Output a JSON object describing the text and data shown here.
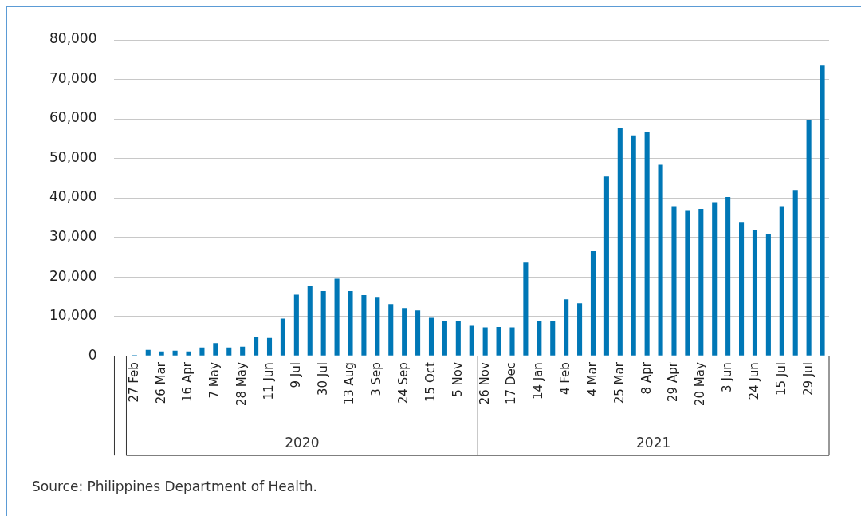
{
  "chart_data": {
    "type": "bar",
    "categories": [
      null,
      "27 Feb",
      null,
      "26 Mar",
      null,
      "16 Apr",
      null,
      "7 May",
      null,
      "28 May",
      null,
      "11 Jun",
      null,
      "9 Jul",
      null,
      "30 Jul",
      null,
      "13 Aug",
      null,
      "3 Sep",
      null,
      "24 Sep",
      null,
      "15 Oct",
      null,
      "5 Nov",
      null,
      "26 Nov",
      null,
      "17 Dec",
      null,
      "14 Jan",
      null,
      "4 Feb",
      null,
      "4 Mar",
      null,
      "25 Mar",
      null,
      "8 Apr",
      null,
      "29 Apr",
      null,
      "20 May",
      null,
      "3 Jun",
      null,
      "24 Jun",
      null,
      "15 Jul",
      null,
      "29 Jul",
      null
    ],
    "values": [
      100,
      200,
      1500,
      1100,
      1300,
      1100,
      2100,
      3200,
      2100,
      2300,
      4700,
      4500,
      9400,
      15500,
      17600,
      16400,
      19500,
      16400,
      15400,
      14700,
      13100,
      12100,
      11500,
      9600,
      8800,
      8800,
      7600,
      7200,
      7300,
      7200,
      23600,
      8900,
      8800,
      14300,
      13300,
      26500,
      45400,
      57700,
      55800,
      56800,
      48400,
      37900,
      36900,
      37200,
      38900,
      40200,
      33900,
      31900,
      30900,
      37900,
      42000,
      59600,
      73500
    ],
    "color": "#0077b6",
    "ylim": [
      0,
      80000
    ],
    "yticks": [
      0,
      {
        "value": 10000,
        "label": "10,000"
      },
      {
        "value": 20000,
        "label": "20,000"
      },
      {
        "value": 30000,
        "label": "30,000"
      },
      {
        "value": 40000,
        "label": "40,000"
      },
      {
        "value": 50000,
        "label": "50,000"
      },
      {
        "value": 60000,
        "label": "60,000"
      },
      {
        "value": 70000,
        "label": "70,000"
      },
      {
        "value": 80000,
        "label": "80,000"
      }
    ],
    "grid": "y",
    "legend": false,
    "annotations": [
      "2020",
      "2021",
      "Source: Philippines Department of Health."
    ]
  }
}
